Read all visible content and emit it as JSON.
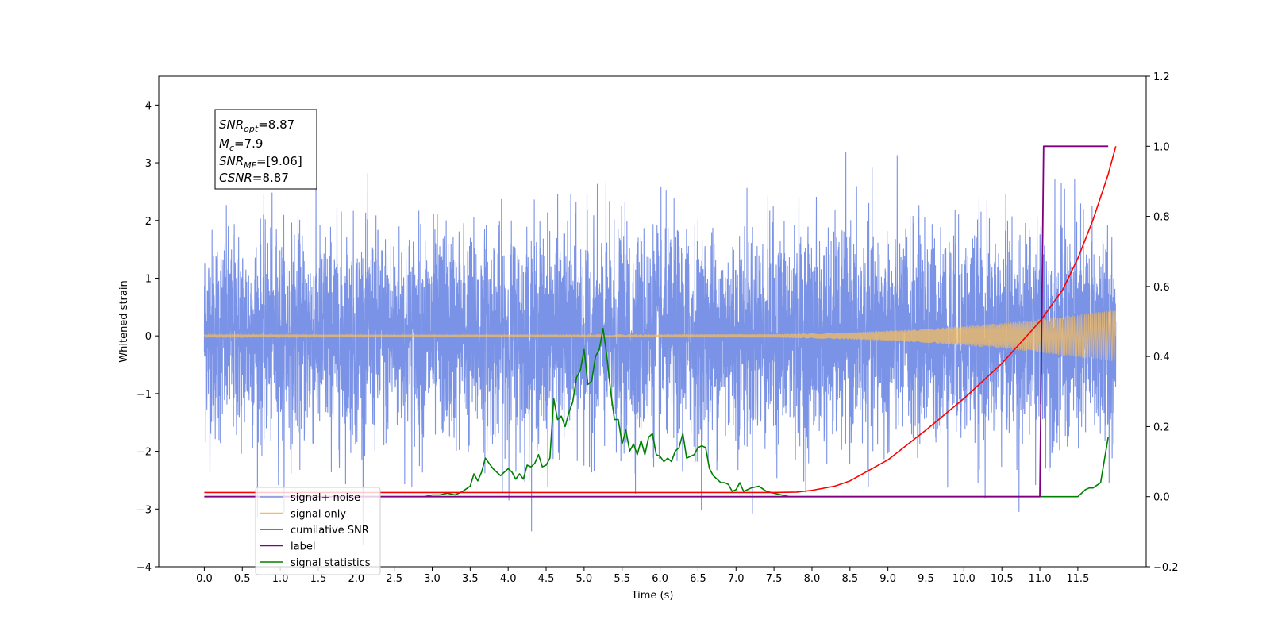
{
  "chart_data": {
    "type": "line",
    "xlabel": "Time (s)",
    "ylabel": "Whitened strain",
    "xlim": [
      -0.6,
      12.4
    ],
    "ylim": [
      -4,
      4.5
    ],
    "y2lim": [
      -0.2,
      1.2
    ],
    "x_ticks": [
      "0.0",
      "0.5",
      "1.0",
      "1.5",
      "2.0",
      "2.5",
      "3.0",
      "3.5",
      "4.0",
      "4.5",
      "5.0",
      "5.5",
      "6.0",
      "6.5",
      "7.0",
      "7.5",
      "8.0",
      "8.5",
      "9.0",
      "9.5",
      "10.0",
      "10.5",
      "11.0",
      "11.5"
    ],
    "y_ticks": [
      "−4",
      "−3",
      "−2",
      "−1",
      "0",
      "1",
      "2",
      "3",
      "4"
    ],
    "y2_ticks": [
      "−0.2",
      "0.0",
      "0.2",
      "0.4",
      "0.6",
      "0.8",
      "1.0",
      "1.2"
    ],
    "grid": false,
    "legend_position": "bottom-left",
    "annotation": {
      "snr_opt": {
        "base": "SNR",
        "sub": "opt",
        "value": "=8.87"
      },
      "mc": {
        "base": "M",
        "sub": "c",
        "value": "=7.9"
      },
      "snr_mf": {
        "base": "SNR",
        "sub": "MF",
        "value": "=[9.06]"
      },
      "csnr": {
        "base": "CSNR",
        "value": "=8.87"
      }
    },
    "series": [
      {
        "name": "signal+ noise",
        "color": "#7b93e6",
        "axis": "left",
        "description": "whitened noisy strain, unit-variance noise from 0 to 12 s"
      },
      {
        "name": "signal only",
        "color": "#f4bc5f",
        "axis": "left",
        "envelope": {
          "x": [
            0,
            7.5,
            8.5,
            9.5,
            10.5,
            11.0,
            11.5,
            12.0
          ],
          "amp": [
            0.02,
            0.03,
            0.06,
            0.12,
            0.22,
            0.29,
            0.37,
            0.45
          ]
        }
      },
      {
        "name": "cumilative SNR",
        "color": "#ff0000",
        "axis": "right",
        "x": [
          0,
          7.0,
          7.5,
          7.8,
          8.0,
          8.3,
          8.5,
          9.0,
          9.5,
          10.0,
          10.5,
          11.0,
          11.3,
          11.5,
          11.7,
          11.9,
          12.0
        ],
        "y": [
          0.012,
          0.012,
          0.012,
          0.013,
          0.018,
          0.03,
          0.045,
          0.105,
          0.19,
          0.28,
          0.38,
          0.5,
          0.59,
          0.68,
          0.79,
          0.92,
          1.0
        ]
      },
      {
        "name": "label",
        "color": "#800080",
        "axis": "right",
        "x": [
          0,
          11.0,
          11.05,
          11.9
        ],
        "y": [
          0,
          0,
          1,
          1
        ]
      },
      {
        "name": "signal statistics",
        "color": "#008000",
        "axis": "right",
        "x": [
          0,
          2.9,
          3.0,
          3.1,
          3.2,
          3.3,
          3.4,
          3.5,
          3.55,
          3.6,
          3.65,
          3.7,
          3.8,
          3.9,
          4.0,
          4.05,
          4.1,
          4.15,
          4.2,
          4.25,
          4.3,
          4.35,
          4.4,
          4.45,
          4.5,
          4.55,
          4.6,
          4.65,
          4.7,
          4.75,
          4.8,
          4.85,
          4.9,
          4.95,
          5.0,
          5.05,
          5.1,
          5.15,
          5.2,
          5.25,
          5.3,
          5.35,
          5.4,
          5.45,
          5.5,
          5.55,
          5.6,
          5.65,
          5.7,
          5.75,
          5.8,
          5.85,
          5.9,
          5.95,
          6.0,
          6.05,
          6.1,
          6.15,
          6.2,
          6.25,
          6.3,
          6.35,
          6.4,
          6.45,
          6.5,
          6.55,
          6.6,
          6.65,
          6.7,
          6.75,
          6.8,
          6.85,
          6.9,
          6.95,
          7.0,
          7.05,
          7.1,
          7.15,
          7.2,
          7.3,
          7.4,
          7.5,
          7.6,
          7.7,
          7.8,
          8.0,
          11.5,
          11.6,
          11.65,
          11.7,
          11.8,
          11.9
        ],
        "y": [
          0,
          0,
          0.005,
          0.005,
          0.01,
          0.005,
          0.015,
          0.03,
          0.065,
          0.045,
          0.07,
          0.11,
          0.08,
          0.06,
          0.08,
          0.07,
          0.05,
          0.065,
          0.05,
          0.09,
          0.085,
          0.095,
          0.12,
          0.085,
          0.09,
          0.11,
          0.28,
          0.22,
          0.23,
          0.2,
          0.24,
          0.27,
          0.34,
          0.36,
          0.42,
          0.32,
          0.33,
          0.4,
          0.42,
          0.48,
          0.4,
          0.3,
          0.22,
          0.22,
          0.15,
          0.19,
          0.13,
          0.15,
          0.12,
          0.16,
          0.12,
          0.17,
          0.18,
          0.12,
          0.115,
          0.1,
          0.11,
          0.1,
          0.13,
          0.14,
          0.18,
          0.11,
          0.115,
          0.12,
          0.14,
          0.145,
          0.14,
          0.08,
          0.06,
          0.05,
          0.04,
          0.04,
          0.035,
          0.015,
          0.02,
          0.04,
          0.015,
          0.02,
          0.025,
          0.03,
          0.015,
          0.01,
          0.005,
          0,
          0,
          0,
          0,
          0.02,
          0.025,
          0.025,
          0.04,
          0.17
        ]
      }
    ]
  }
}
